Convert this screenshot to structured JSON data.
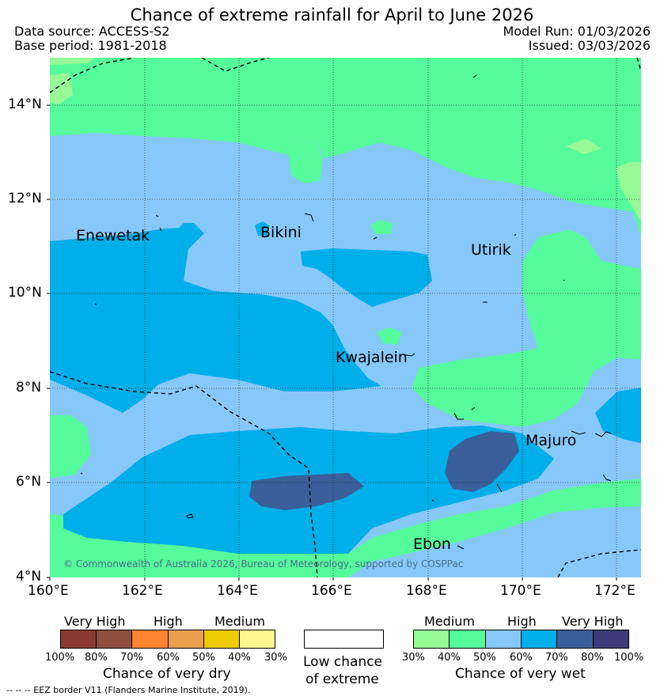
{
  "header": {
    "title": "Chance of extreme rainfall for April to June 2026",
    "data_source": "Data source: ACCESS-S2",
    "base_period": "Base period: 1981-2018",
    "model_run": "Model Run: 01/03/2026",
    "issued": "Issued: 03/03/2026"
  },
  "map": {
    "copyright": "© Commonwealth of Australia 2026, Bureau of Meteorology, supported by COSPPac",
    "lat_ticks": [
      "14°N",
      "12°N",
      "10°N",
      "8°N",
      "6°N",
      "4°N"
    ],
    "lon_ticks": [
      "160°E",
      "162°E",
      "164°E",
      "166°E",
      "168°E",
      "170°E",
      "172°E"
    ],
    "places": {
      "enewetak": "Enewetak",
      "bikini": "Bikini",
      "utirik": "Utirik",
      "kwajalein": "Kwajalein",
      "majuro": "Majuro",
      "ebon": "Ebon"
    },
    "extent": {
      "lon": [
        160,
        172.5
      ],
      "lat": [
        4,
        15
      ]
    }
  },
  "legend": {
    "dry": {
      "categories": [
        "Very High",
        "High",
        "Medium"
      ],
      "ticks": [
        "100%",
        "80%",
        "70%",
        "60%",
        "50%",
        "40%",
        "30%"
      ],
      "colors": [
        "#8b3a32",
        "#8e4f3f",
        "#fd8431",
        "#ea9f4f",
        "#efcc00",
        "#fff78d"
      ],
      "title": "Chance of very dry"
    },
    "neutral": {
      "line1": "Low chance",
      "line2": "of extreme"
    },
    "wet": {
      "categories": [
        "Medium",
        "High",
        "Very High"
      ],
      "ticks": [
        "30%",
        "40%",
        "50%",
        "60%",
        "70%",
        "80%",
        "100%"
      ],
      "colors": [
        "#96fa96",
        "#55fa9b",
        "#87c8fa",
        "#00aee9",
        "#3a5f9a",
        "#3a3b78"
      ],
      "title": "Chance of very wet"
    }
  },
  "footnote": "--  --  -- EEZ border V11 (Flanders Marine Institute, 2019)."
}
